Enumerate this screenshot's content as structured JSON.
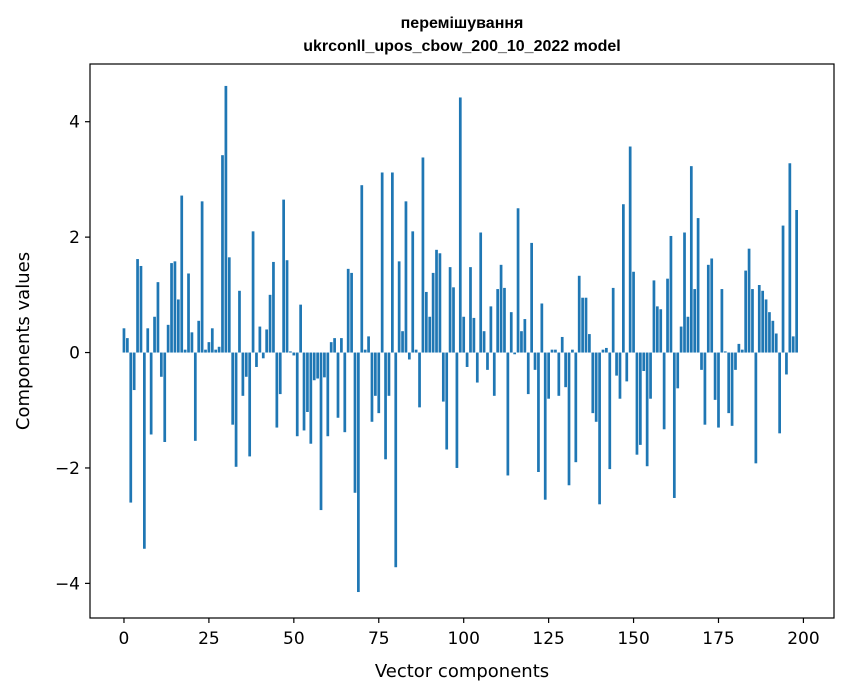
{
  "chart_data": {
    "type": "bar",
    "title_line1": "перемішування",
    "title_line2": "ukrconll_upos_cbow_200_10_2022 model",
    "xlabel": "Vector components",
    "ylabel": "Components values",
    "xlim": [
      -10,
      209
    ],
    "ylim": [
      -4.6,
      5.0
    ],
    "xticks": [
      0,
      25,
      50,
      75,
      100,
      125,
      150,
      175,
      200
    ],
    "yticks": [
      -4,
      -2,
      0,
      2,
      4
    ],
    "ytick_labels": [
      "−4",
      "−2",
      "0",
      "2",
      "4"
    ],
    "bar_color": "#1f77b4",
    "values": [
      0.42,
      0.25,
      -2.6,
      -0.65,
      1.62,
      1.5,
      -3.4,
      0.42,
      -1.42,
      0.62,
      1.22,
      -0.42,
      -1.55,
      0.48,
      1.55,
      1.58,
      0.92,
      2.72,
      0.05,
      1.37,
      0.35,
      -1.53,
      0.55,
      2.62,
      0.05,
      0.18,
      0.42,
      0.05,
      0.1,
      3.42,
      4.62,
      1.65,
      -1.25,
      -1.98,
      1.07,
      -0.75,
      -0.42,
      -1.8,
      2.1,
      -0.25,
      0.45,
      -0.1,
      0.4,
      1.0,
      1.57,
      -1.3,
      -0.72,
      2.65,
      1.6,
      0.02,
      -0.05,
      -1.45,
      0.83,
      -1.35,
      -1.03,
      -1.58,
      -0.48,
      -0.45,
      -2.73,
      -0.43,
      -1.45,
      0.18,
      0.25,
      -1.13,
      0.25,
      -1.38,
      1.45,
      1.38,
      -2.43,
      -4.15,
      2.9,
      0.05,
      0.28,
      -1.2,
      -0.75,
      -1.05,
      3.12,
      -1.85,
      -0.75,
      3.12,
      -3.72,
      1.58,
      0.37,
      2.62,
      -0.12,
      2.1,
      0.05,
      -0.95,
      3.38,
      1.05,
      0.62,
      1.38,
      1.78,
      1.72,
      -0.85,
      -1.68,
      1.48,
      1.13,
      -2.0,
      4.42,
      0.62,
      -0.25,
      1.48,
      0.6,
      -0.52,
      2.08,
      0.37,
      -0.3,
      0.8,
      -0.75,
      1.1,
      1.52,
      1.12,
      -2.13,
      0.7,
      -0.03,
      2.5,
      0.37,
      0.58,
      -0.72,
      1.9,
      -0.3,
      -2.07,
      0.85,
      -2.55,
      -0.8,
      0.05,
      0.05,
      -0.75,
      0.27,
      -0.6,
      -2.3,
      0.05,
      -1.9,
      1.33,
      0.95,
      0.95,
      0.32,
      -1.05,
      -1.2,
      -2.63,
      0.05,
      0.08,
      -2.02,
      1.12,
      -0.4,
      -0.8,
      2.57,
      -0.5,
      3.57,
      1.4,
      -1.77,
      -1.6,
      -0.32,
      -1.97,
      -0.8,
      1.25,
      0.8,
      0.75,
      -1.33,
      1.28,
      2.02,
      -2.52,
      -0.62,
      0.45,
      2.08,
      0.62,
      3.23,
      1.1,
      2.33,
      -0.3,
      -1.25,
      1.52,
      1.63,
      -0.82,
      -1.3,
      1.1,
      0.02,
      -1.05,
      -1.27,
      -0.3,
      0.15,
      0.05,
      1.42,
      1.8,
      1.1,
      -1.92,
      1.17,
      1.07,
      0.92,
      0.7,
      0.55,
      0.33,
      -1.4,
      2.2,
      -0.38,
      3.28,
      0.28,
      2.47
    ]
  }
}
